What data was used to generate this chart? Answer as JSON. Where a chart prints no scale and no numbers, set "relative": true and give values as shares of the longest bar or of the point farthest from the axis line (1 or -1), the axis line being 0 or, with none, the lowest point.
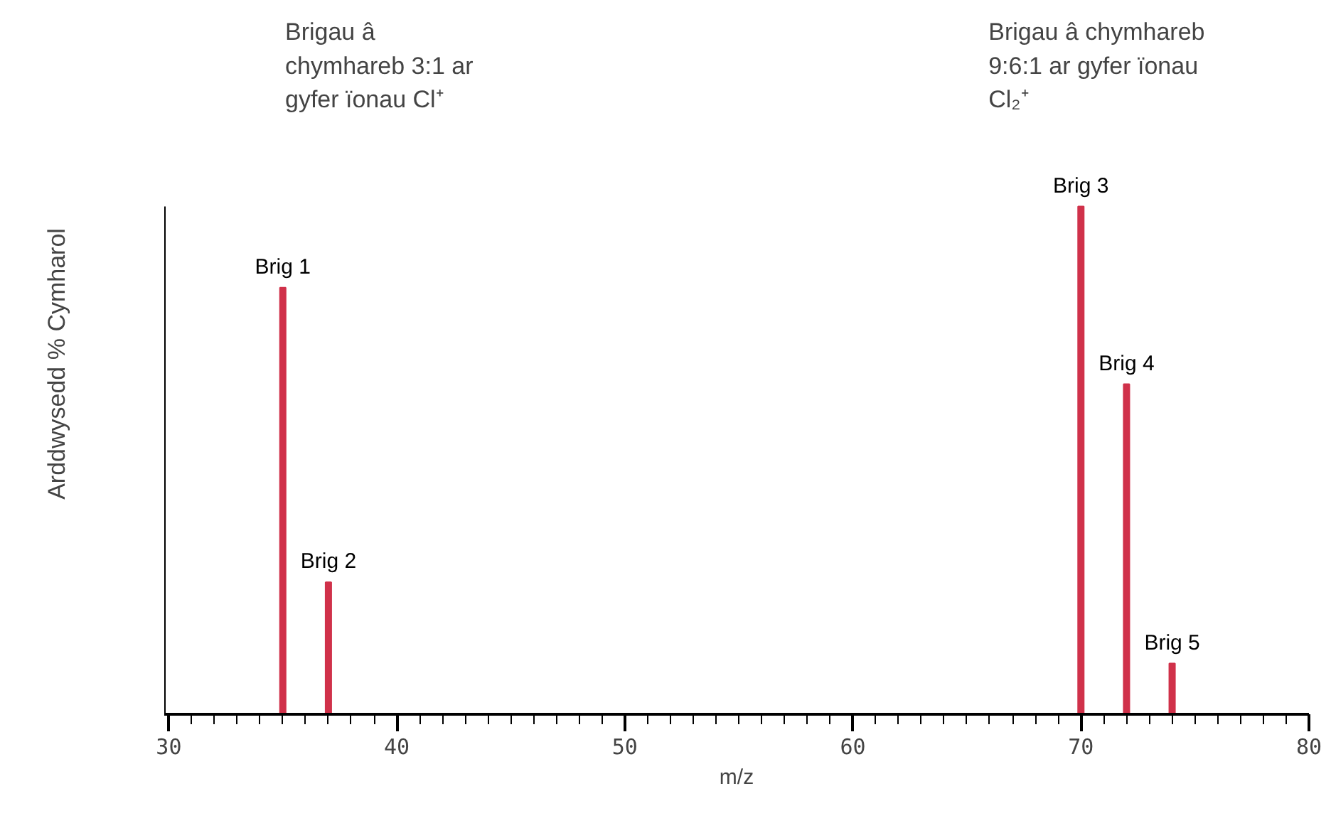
{
  "chart_data": {
    "type": "bar",
    "relative": true,
    "xlabel": "m/z",
    "ylabel": "Arddwysedd % Cymharol",
    "x": [
      35,
      37,
      70,
      72,
      74
    ],
    "values": [
      0.84,
      0.26,
      1,
      0.65,
      0.1
    ],
    "color": "#d0314a",
    "xlim": [
      29.8,
      80
    ],
    "xticks": [
      30,
      {
        "value": 31,
        "label": null
      },
      {
        "value": 32,
        "label": null
      },
      {
        "value": 33,
        "label": null
      },
      {
        "value": 34,
        "label": null
      },
      {
        "value": 35,
        "label": null
      },
      {
        "value": 36,
        "label": null
      },
      {
        "value": 37,
        "label": null
      },
      {
        "value": 38,
        "label": null
      },
      {
        "value": 39,
        "label": null
      },
      40,
      {
        "value": 41,
        "label": null
      },
      {
        "value": 42,
        "label": null
      },
      {
        "value": 43,
        "label": null
      },
      {
        "value": 44,
        "label": null
      },
      {
        "value": 45,
        "label": null
      },
      {
        "value": 46,
        "label": null
      },
      {
        "value": 47,
        "label": null
      },
      {
        "value": 48,
        "label": null
      },
      {
        "value": 49,
        "label": null
      },
      50,
      {
        "value": 51,
        "label": null
      },
      {
        "value": 52,
        "label": null
      },
      {
        "value": 53,
        "label": null
      },
      {
        "value": 54,
        "label": null
      },
      {
        "value": 55,
        "label": null
      },
      {
        "value": 56,
        "label": null
      },
      {
        "value": 57,
        "label": null
      },
      {
        "value": 58,
        "label": null
      },
      {
        "value": 59,
        "label": null
      },
      60,
      {
        "value": 61,
        "label": null
      },
      {
        "value": 62,
        "label": null
      },
      {
        "value": 63,
        "label": null
      },
      {
        "value": 64,
        "label": null
      },
      {
        "value": 65,
        "label": null
      },
      {
        "value": 66,
        "label": null
      },
      {
        "value": 67,
        "label": null
      },
      {
        "value": 68,
        "label": null
      },
      {
        "value": 69,
        "label": null
      },
      70,
      {
        "value": 71,
        "label": null
      },
      {
        "value": 72,
        "label": null
      },
      {
        "value": 73,
        "label": null
      },
      {
        "value": 74,
        "label": null
      },
      {
        "value": 75,
        "label": null
      },
      {
        "value": 76,
        "label": null
      },
      {
        "value": 77,
        "label": null
      },
      {
        "value": 78,
        "label": null
      },
      {
        "value": 79,
        "label": null
      },
      80
    ],
    "grid": false,
    "annotations": [
      "Brigau â\nchymhareb 3:1 ar\ngyfer ïonau Cl⁺",
      "Brigau â chymhareb\n9:6:1 ar gyfer ïonau\nCl₂⁺",
      {
        "text": "Brig 1",
        "x": 35,
        "y": 0.84
      },
      {
        "text": "Brig 2",
        "x": 37,
        "y": 0.26
      },
      {
        "text": "Brig 3",
        "x": 70,
        "y": 1
      },
      {
        "text": "Brig 4",
        "x": 72,
        "y": 0.65
      },
      {
        "text": "Brig 5",
        "x": 74,
        "y": 0.1
      }
    ]
  }
}
